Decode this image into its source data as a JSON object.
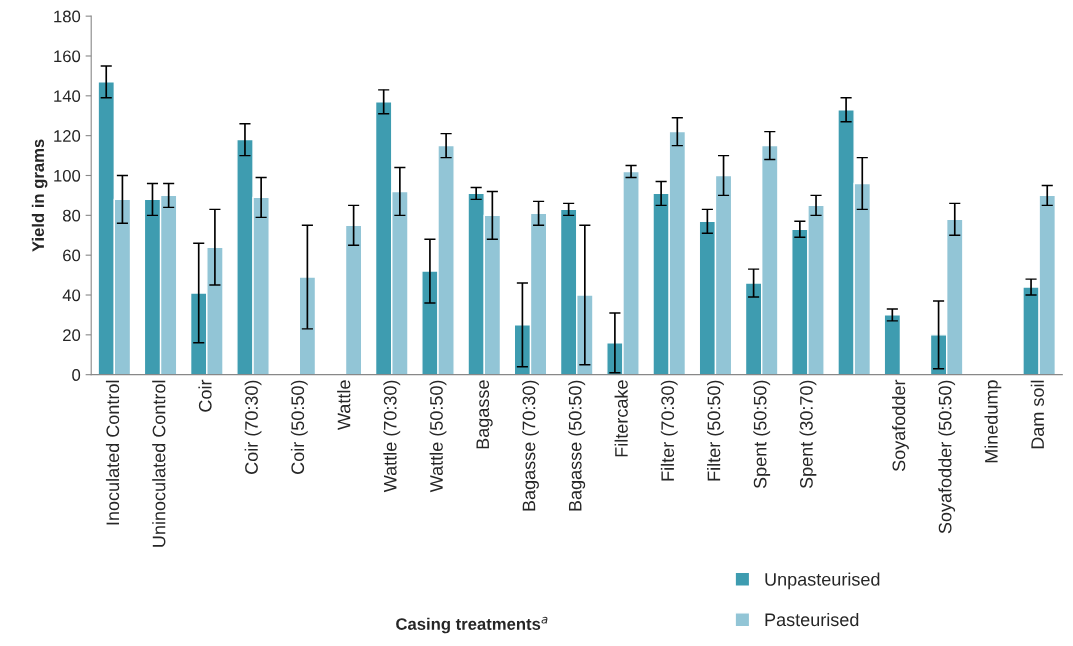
{
  "chart_data": {
    "type": "bar",
    "xlabel": "Casing treatments$^{a}$",
    "ylabel": "Yield in grams",
    "categories": [
      "Inoculated Control",
      "Uninoculated Control",
      "Coir",
      "Coir (70:30)",
      "Coir (50:50)",
      "Wattle",
      "Wattle (70:30)",
      "Wattle (50:50)",
      "Bagasse",
      "Bagasse (70:30)",
      "Bagasse (50:50)",
      "Filtercake",
      "Filter (70:30)",
      "Filter (50:50)",
      "Spent (50:50)",
      "Spent (30:70)",
      null,
      "Soyafodder",
      "Soyafodder (50:50)",
      "Minedump",
      "Dam soil"
    ],
    "series": [
      {
        "name": "Unpasteurised",
        "color": "#3e9cb0",
        "values": [
          147,
          88,
          41,
          118,
          null,
          null,
          137,
          52,
          91,
          25,
          83,
          16,
          91,
          77,
          46,
          73,
          133,
          30,
          20,
          null,
          44
        ],
        "errors": [
          8,
          8,
          25,
          8,
          null,
          null,
          6,
          16,
          3,
          21,
          3,
          15,
          6,
          6,
          7,
          4,
          6,
          3,
          17,
          null,
          4
        ]
      },
      {
        "name": "Pasteurised",
        "color": "#92c5d6",
        "values": [
          88,
          90,
          64,
          89,
          49,
          75,
          92,
          115,
          80,
          81,
          40,
          102,
          122,
          100,
          115,
          85,
          96,
          null,
          78,
          null,
          90
        ],
        "errors": [
          12,
          6,
          19,
          10,
          26,
          10,
          12,
          6,
          12,
          6,
          35,
          3,
          7,
          10,
          7,
          5,
          13,
          null,
          8,
          null,
          5
        ]
      }
    ],
    "ylim": [
      0,
      180
    ],
    "yticks": [
      0,
      20,
      40,
      60,
      80,
      100,
      120,
      140,
      160,
      180
    ],
    "grid": false,
    "legend": "bottom right"
  }
}
